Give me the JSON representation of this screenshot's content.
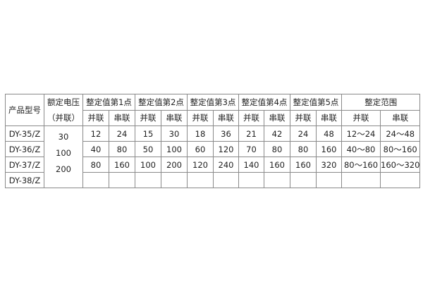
{
  "table": {
    "header": {
      "model": "产品型号",
      "voltage": "额定电压",
      "voltage_sub": "（并联）",
      "groups": [
        "整定值第1点",
        "整定值第2点",
        "整定值第3点",
        "整定值第4点",
        "整定值第5点",
        "整定范围"
      ],
      "sub": [
        "并联",
        "串联",
        "并联",
        "串联",
        "并联",
        "串联",
        "并联",
        "串联",
        "并联",
        "串联",
        "并联",
        "串联"
      ]
    },
    "voltages": [
      "30",
      "100",
      "200"
    ],
    "rows": [
      {
        "model": "DY-35/Z",
        "cells": [
          "12",
          "24",
          "15",
          "30",
          "18",
          "36",
          "21",
          "42",
          "24",
          "48",
          "12～24",
          "24～48"
        ]
      },
      {
        "model": "DY-36/Z",
        "cells": [
          "40",
          "80",
          "50",
          "100",
          "60",
          "120",
          "70",
          "80",
          "80",
          "160",
          "40～80",
          "80～160"
        ]
      },
      {
        "model": "DY-37/Z",
        "cells": [
          "80",
          "160",
          "100",
          "200",
          "120",
          "240",
          "140",
          "160",
          "160",
          "320",
          "80～160",
          "160～320"
        ]
      },
      {
        "model": "DY-38/Z",
        "cells": [
          "",
          "",
          "",
          "",
          "",
          "",
          "",
          "",
          "",
          "",
          "",
          ""
        ]
      }
    ]
  }
}
